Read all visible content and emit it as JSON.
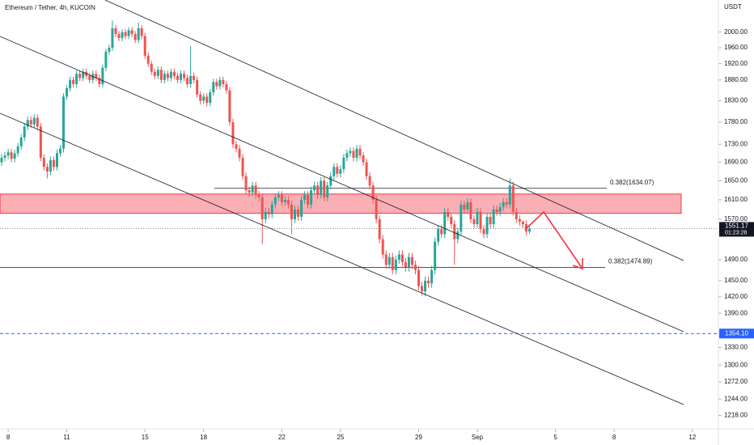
{
  "chart_data": {
    "type": "candlestick",
    "title": "Ethereum / Tether, 4h, KUCOIN",
    "y_unit": "USDT",
    "log_scale": true,
    "up_color": "#26a69a",
    "down_color": "#ef5350",
    "xlim": [
      158,
      1040
    ],
    "ylim": [
      1197,
      2085
    ],
    "xticks": [
      {
        "value": 168,
        "label": "8"
      },
      {
        "value": 240,
        "label": "11"
      },
      {
        "value": 336,
        "label": "15"
      },
      {
        "value": 408,
        "label": "18"
      },
      {
        "value": 504,
        "label": "22"
      },
      {
        "value": 576,
        "label": "25"
      },
      {
        "value": 672,
        "label": "29"
      },
      {
        "value": 744,
        "label": "Sep"
      },
      {
        "value": 840,
        "label": "5"
      },
      {
        "value": 912,
        "label": "8"
      },
      {
        "value": 1008,
        "label": "12"
      }
    ],
    "yticks": [
      {
        "value": 2000,
        "label": "2000.00"
      },
      {
        "value": 1960,
        "label": "1960.00"
      },
      {
        "value": 1920,
        "label": "1920.00"
      },
      {
        "value": 1880,
        "label": "1880.00"
      },
      {
        "value": 1830,
        "label": "1830.00"
      },
      {
        "value": 1780,
        "label": "1780.00"
      },
      {
        "value": 1730,
        "label": "1730.00"
      },
      {
        "value": 1690,
        "label": "1690.00"
      },
      {
        "value": 1650,
        "label": "1650.00"
      },
      {
        "value": 1610,
        "label": "1610.00"
      },
      {
        "value": 1570,
        "label": "1570.00"
      },
      {
        "value": 1490,
        "label": "1490.00"
      },
      {
        "value": 1450,
        "label": "1450.00"
      },
      {
        "value": 1420,
        "label": "1420.00"
      },
      {
        "value": 1390,
        "label": "1390.00"
      },
      {
        "value": 1330,
        "label": "1330.00"
      },
      {
        "value": 1300,
        "label": "1300.00"
      },
      {
        "value": 1272,
        "label": "1272.00"
      },
      {
        "value": 1244,
        "label": "1244.00"
      },
      {
        "value": 1218,
        "label": "1218.00"
      }
    ],
    "x": [
      160,
      164,
      168,
      172,
      176,
      180,
      184,
      188,
      192,
      196,
      200,
      204,
      208,
      212,
      216,
      220,
      224,
      228,
      232,
      236,
      240,
      244,
      248,
      252,
      256,
      260,
      264,
      268,
      272,
      276,
      280,
      284,
      288,
      292,
      296,
      300,
      304,
      308,
      312,
      316,
      320,
      324,
      328,
      332,
      336,
      340,
      344,
      348,
      352,
      356,
      360,
      364,
      368,
      372,
      376,
      380,
      384,
      388,
      392,
      396,
      400,
      404,
      408,
      412,
      416,
      420,
      424,
      428,
      432,
      436,
      440,
      444,
      448,
      452,
      456,
      460,
      464,
      468,
      472,
      476,
      480,
      484,
      488,
      492,
      496,
      500,
      504,
      508,
      512,
      516,
      520,
      524,
      528,
      532,
      536,
      540,
      544,
      548,
      552,
      556,
      560,
      564,
      568,
      572,
      576,
      580,
      584,
      588,
      592,
      596,
      600,
      604,
      608,
      612,
      616,
      620,
      624,
      628,
      632,
      636,
      640,
      644,
      648,
      652,
      656,
      660,
      664,
      668,
      672,
      676,
      680,
      684,
      688,
      692,
      696,
      700,
      704,
      708,
      712,
      716,
      720,
      724,
      728,
      732,
      736,
      740,
      744,
      748,
      752,
      756,
      760,
      764,
      768,
      772,
      776,
      780,
      784,
      788,
      792,
      796,
      800,
      804,
      808
    ],
    "open": [
      1690,
      1700,
      1705,
      1712,
      1698,
      1710,
      1725,
      1745,
      1770,
      1785,
      1775,
      1790,
      1770,
      1700,
      1680,
      1670,
      1695,
      1680,
      1710,
      1720,
      1840,
      1860,
      1880,
      1870,
      1895,
      1885,
      1900,
      1890,
      1880,
      1895,
      1885,
      1870,
      1910,
      1950,
      1960,
      2010,
      1995,
      1985,
      2000,
      1990,
      2005,
      1995,
      1980,
      2010,
      1990,
      1940,
      1920,
      1900,
      1890,
      1905,
      1880,
      1895,
      1885,
      1900,
      1890,
      1880,
      1895,
      1885,
      1870,
      1890,
      1880,
      1845,
      1830,
      1840,
      1825,
      1850,
      1875,
      1865,
      1880,
      1870,
      1855,
      1780,
      1730,
      1720,
      1700,
      1660,
      1630,
      1625,
      1640,
      1620,
      1615,
      1570,
      1585,
      1580,
      1600,
      1615,
      1620,
      1605,
      1610,
      1600,
      1570,
      1590,
      1575,
      1610,
      1620,
      1600,
      1630,
      1640,
      1620,
      1650,
      1615,
      1640,
      1660,
      1680,
      1665,
      1675,
      1700,
      1710,
      1715,
      1700,
      1720,
      1705,
      1690,
      1660,
      1640,
      1610,
      1570,
      1530,
      1500,
      1480,
      1495,
      1470,
      1490,
      1500,
      1485,
      1475,
      1495,
      1480,
      1470,
      1440,
      1430,
      1450,
      1445,
      1470,
      1525,
      1550,
      1540,
      1585,
      1575,
      1560,
      1530,
      1545,
      1600,
      1590,
      1605,
      1570,
      1560,
      1585,
      1550,
      1540,
      1575,
      1560,
      1590,
      1585,
      1595,
      1605,
      1600,
      1640,
      1585,
      1570,
      1565,
      1560,
      1545
    ],
    "high": [
      1708,
      1713,
      1720,
      1720,
      1718,
      1733,
      1753,
      1778,
      1793,
      1793,
      1798,
      1798,
      1778,
      1708,
      1688,
      1703,
      1703,
      1718,
      1728,
      1848,
      1868,
      1888,
      1888,
      1903,
      1903,
      1908,
      1908,
      1898,
      1903,
      1903,
      1893,
      1918,
      1958,
      1968,
      2030,
      2018,
      2003,
      2008,
      2008,
      2013,
      2013,
      2003,
      2025,
      2018,
      1998,
      1948,
      1928,
      1908,
      1913,
      1913,
      1903,
      1903,
      1908,
      1908,
      1898,
      1903,
      1903,
      1893,
      1965,
      1898,
      1888,
      1853,
      1848,
      1848,
      1858,
      1883,
      1883,
      1888,
      1888,
      1878,
      1863,
      1788,
      1738,
      1728,
      1708,
      1668,
      1638,
      1648,
      1648,
      1628,
      1623,
      1593,
      1593,
      1608,
      1623,
      1628,
      1628,
      1618,
      1618,
      1608,
      1598,
      1598,
      1618,
      1628,
      1628,
      1638,
      1648,
      1648,
      1658,
      1658,
      1648,
      1668,
      1688,
      1688,
      1683,
      1708,
      1718,
      1723,
      1723,
      1728,
      1728,
      1713,
      1698,
      1668,
      1648,
      1618,
      1578,
      1538,
      1508,
      1503,
      1503,
      1498,
      1508,
      1508,
      1493,
      1503,
      1503,
      1488,
      1478,
      1448,
      1458,
      1458,
      1478,
      1533,
      1558,
      1558,
      1593,
      1593,
      1583,
      1568,
      1553,
      1608,
      1608,
      1613,
      1613,
      1578,
      1593,
      1593,
      1558,
      1583,
      1583,
      1598,
      1598,
      1603,
      1613,
      1613,
      1655,
      1648,
      1593,
      1578,
      1568,
      1568,
      1558
    ],
    "low": [
      1682,
      1692,
      1697,
      1690,
      1690,
      1702,
      1717,
      1737,
      1762,
      1767,
      1767,
      1762,
      1692,
      1672,
      1655,
      1662,
      1672,
      1672,
      1702,
      1712,
      1832,
      1852,
      1862,
      1862,
      1877,
      1877,
      1882,
      1872,
      1872,
      1877,
      1862,
      1862,
      1902,
      1942,
      1952,
      1987,
      1977,
      1977,
      1982,
      1982,
      1987,
      1972,
      1972,
      1982,
      1932,
      1912,
      1892,
      1882,
      1882,
      1872,
      1872,
      1877,
      1877,
      1882,
      1872,
      1872,
      1877,
      1862,
      1862,
      1872,
      1837,
      1822,
      1822,
      1817,
      1817,
      1842,
      1857,
      1857,
      1862,
      1847,
      1772,
      1722,
      1712,
      1692,
      1652,
      1622,
      1617,
      1617,
      1612,
      1607,
      1520,
      1562,
      1572,
      1572,
      1592,
      1607,
      1597,
      1597,
      1592,
      1540,
      1562,
      1567,
      1567,
      1602,
      1592,
      1592,
      1622,
      1612,
      1612,
      1607,
      1607,
      1632,
      1652,
      1657,
      1657,
      1667,
      1692,
      1702,
      1692,
      1692,
      1697,
      1682,
      1652,
      1632,
      1602,
      1562,
      1522,
      1492,
      1472,
      1472,
      1462,
      1462,
      1482,
      1477,
      1467,
      1467,
      1472,
      1462,
      1432,
      1422,
      1422,
      1437,
      1437,
      1462,
      1517,
      1532,
      1532,
      1567,
      1552,
      1480,
      1522,
      1537,
      1582,
      1582,
      1562,
      1552,
      1552,
      1542,
      1532,
      1532,
      1552,
      1552,
      1577,
      1577,
      1587,
      1592,
      1592,
      1577,
      1562,
      1557,
      1552,
      1537,
      1540
    ],
    "close": [
      1700,
      1705,
      1712,
      1698,
      1710,
      1725,
      1745,
      1770,
      1785,
      1775,
      1790,
      1770,
      1700,
      1680,
      1670,
      1695,
      1680,
      1710,
      1720,
      1840,
      1860,
      1880,
      1870,
      1895,
      1885,
      1900,
      1890,
      1880,
      1895,
      1885,
      1870,
      1910,
      1950,
      1960,
      2010,
      1995,
      1985,
      2000,
      1990,
      2005,
      1995,
      1980,
      2010,
      1990,
      1940,
      1920,
      1900,
      1890,
      1905,
      1880,
      1895,
      1885,
      1900,
      1890,
      1880,
      1895,
      1885,
      1870,
      1890,
      1880,
      1845,
      1830,
      1840,
      1825,
      1850,
      1875,
      1865,
      1880,
      1870,
      1855,
      1780,
      1730,
      1720,
      1700,
      1660,
      1630,
      1625,
      1640,
      1620,
      1615,
      1570,
      1585,
      1580,
      1600,
      1615,
      1620,
      1605,
      1610,
      1600,
      1570,
      1590,
      1575,
      1610,
      1620,
      1600,
      1630,
      1640,
      1620,
      1650,
      1615,
      1640,
      1660,
      1680,
      1665,
      1675,
      1700,
      1710,
      1715,
      1700,
      1720,
      1705,
      1690,
      1660,
      1640,
      1610,
      1570,
      1530,
      1500,
      1480,
      1495,
      1470,
      1490,
      1500,
      1485,
      1475,
      1495,
      1480,
      1470,
      1440,
      1430,
      1450,
      1445,
      1470,
      1525,
      1550,
      1540,
      1585,
      1575,
      1560,
      1530,
      1545,
      1600,
      1590,
      1605,
      1570,
      1560,
      1585,
      1550,
      1540,
      1575,
      1560,
      1590,
      1585,
      1595,
      1605,
      1600,
      1640,
      1585,
      1570,
      1565,
      1560,
      1545,
      1551.17
    ],
    "zone": {
      "low": 1582,
      "high": 1622,
      "color": "#f23645"
    },
    "fib_levels": [
      {
        "label": "0.382(1634.07)",
        "value": 1634.07
      },
      {
        "label": "0.382(1474.89)",
        "value": 1474.89
      }
    ],
    "last_price": {
      "value": 1551.17,
      "label": "1551.17"
    },
    "countdown": "01:23:28",
    "level": {
      "value": 1354.1,
      "label": "1354.10",
      "color": "#2962ff"
    }
  }
}
